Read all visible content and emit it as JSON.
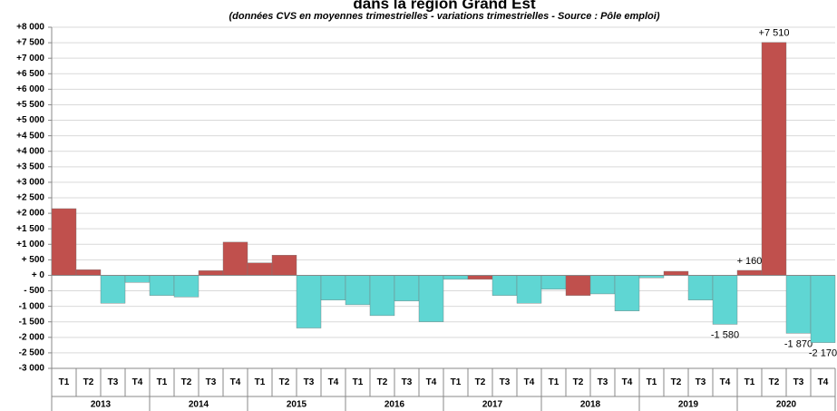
{
  "chart_data": {
    "type": "bar",
    "title": "dans la région Grand Est",
    "subtitle": "(données CVS en moyennes trimestrielles - variations trimestrielles - Source : Pôle emploi)",
    "categories": [
      "T1",
      "T2",
      "T3",
      "T4",
      "T1",
      "T2",
      "T3",
      "T4",
      "T1",
      "T2",
      "T3",
      "T4",
      "T1",
      "T2",
      "T3",
      "T4",
      "T1",
      "T2",
      "T3",
      "T4",
      "T1",
      "T2",
      "T3",
      "T4",
      "T1",
      "T2",
      "T3",
      "T4",
      "T1",
      "T2",
      "T3",
      "T4"
    ],
    "groups": [
      "2013",
      "2014",
      "2015",
      "2016",
      "2017",
      "2018",
      "2019",
      "2020"
    ],
    "values": [
      2150,
      180,
      -900,
      -230,
      -650,
      -700,
      150,
      1070,
      400,
      650,
      -1700,
      -800,
      -950,
      -1300,
      -830,
      -1500,
      -130,
      -130,
      -650,
      -900,
      -450,
      -650,
      -600,
      -1150,
      -80,
      130,
      -800,
      -1580,
      160,
      7510,
      -1870,
      -2170
    ],
    "value_labels": [
      null,
      null,
      null,
      null,
      null,
      null,
      null,
      null,
      null,
      null,
      null,
      null,
      null,
      null,
      null,
      null,
      null,
      null,
      null,
      null,
      null,
      null,
      null,
      null,
      null,
      null,
      null,
      "-1 580",
      "+ 160",
      "+7 510",
      "-1 870",
      "-2 170"
    ],
    "colors": [
      "#c0504d",
      "#c0504d",
      "#5fd6d3",
      "#5fd6d3",
      "#5fd6d3",
      "#5fd6d3",
      "#c0504d",
      "#c0504d",
      "#c0504d",
      "#c0504d",
      "#5fd6d3",
      "#5fd6d3",
      "#5fd6d3",
      "#5fd6d3",
      "#5fd6d3",
      "#5fd6d3",
      "#5fd6d3",
      "#c0504d",
      "#5fd6d3",
      "#5fd6d3",
      "#5fd6d3",
      "#c0504d",
      "#5fd6d3",
      "#5fd6d3",
      "#5fd6d3",
      "#c0504d",
      "#5fd6d3",
      "#5fd6d3",
      "#c0504d",
      "#c0504d",
      "#5fd6d3",
      "#5fd6d3"
    ],
    "ylim": [
      -3000,
      8000
    ],
    "yticks": [
      {
        "value": 8000,
        "label": "+8 000"
      },
      {
        "value": 7500,
        "label": "+7 500"
      },
      {
        "value": 7000,
        "label": "+7 000"
      },
      {
        "value": 6500,
        "label": "+6 500"
      },
      {
        "value": 6000,
        "label": "+6 000"
      },
      {
        "value": 5500,
        "label": "+5 500"
      },
      {
        "value": 5000,
        "label": "+5 000"
      },
      {
        "value": 4500,
        "label": "+4 500"
      },
      {
        "value": 4000,
        "label": "+4 000"
      },
      {
        "value": 3500,
        "label": "+3 500"
      },
      {
        "value": 3000,
        "label": "+3 000"
      },
      {
        "value": 2500,
        "label": "+2 500"
      },
      {
        "value": 2000,
        "label": "+2 000"
      },
      {
        "value": 1500,
        "label": "+1 500"
      },
      {
        "value": 1000,
        "label": "+1 000"
      },
      {
        "value": 500,
        "label": "+ 500"
      },
      {
        "value": 0,
        "label": "+ 0"
      },
      {
        "value": -500,
        "label": "- 500"
      },
      {
        "value": -1000,
        "label": "-1 000"
      },
      {
        "value": -1500,
        "label": "-1 500"
      },
      {
        "value": -2000,
        "label": "-2 000"
      },
      {
        "value": -2500,
        "label": "-2 500"
      },
      {
        "value": -3000,
        "label": "-3 000"
      }
    ],
    "grid": true
  }
}
